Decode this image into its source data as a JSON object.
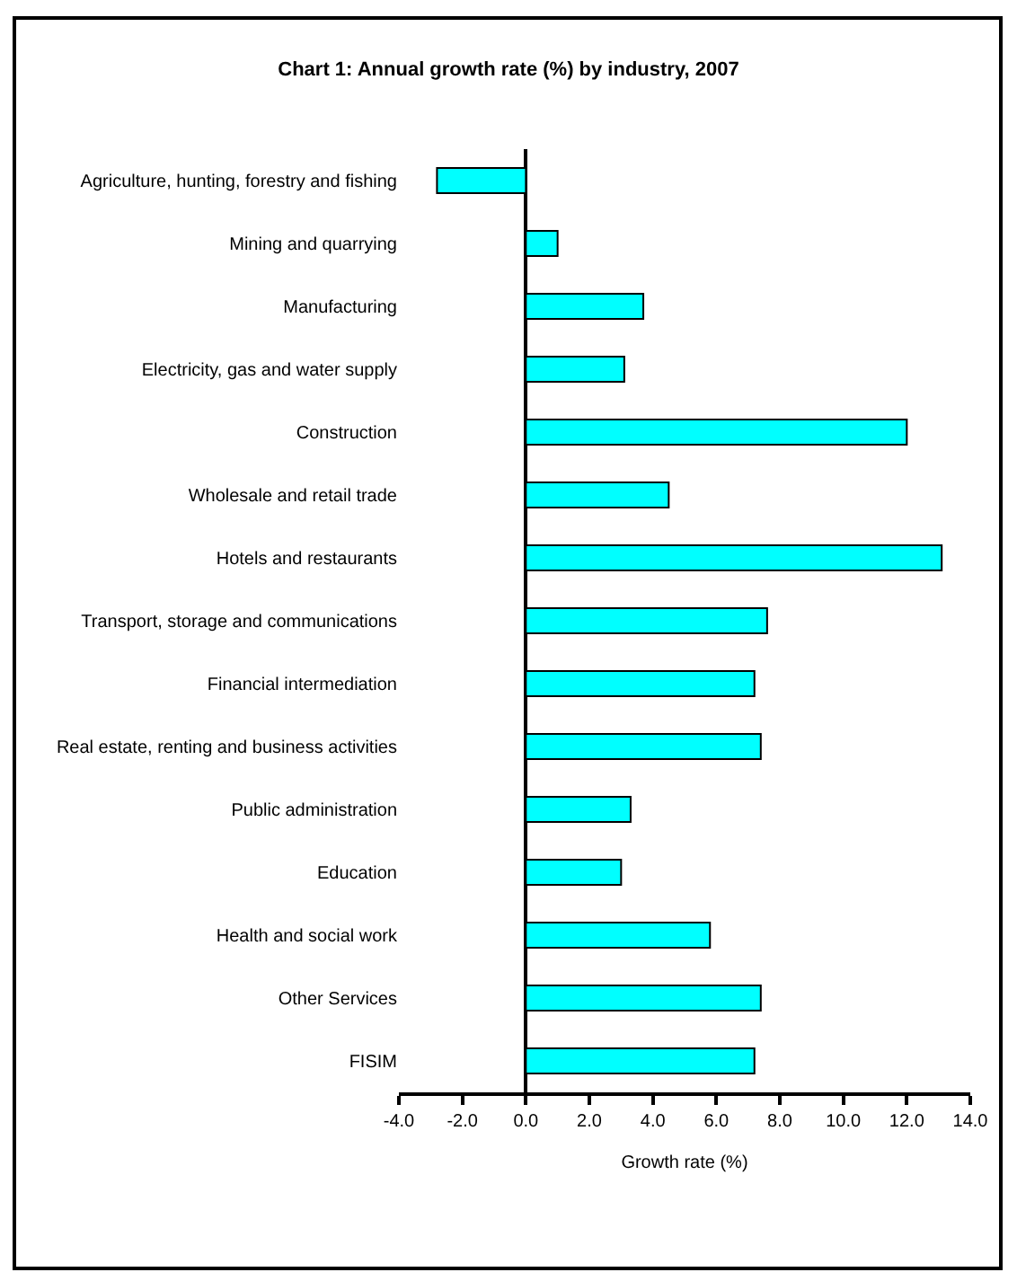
{
  "chart_data": {
    "type": "bar",
    "orientation": "horizontal",
    "title": "Chart 1: Annual growth rate (%) by industry, 2007",
    "xlabel": "Growth rate (%)",
    "categories": [
      "Agriculture, hunting, forestry and fishing",
      "Mining and quarrying",
      "Manufacturing",
      "Electricity, gas and water supply",
      "Construction",
      "Wholesale and retail trade",
      "Hotels and restaurants",
      "Transport, storage and communications",
      "Financial intermediation",
      "Real estate, renting and business activities",
      "Public administration",
      "Education",
      "Health and social work",
      "Other Services",
      "FISIM"
    ],
    "values": [
      -2.8,
      1.0,
      3.7,
      3.1,
      12.0,
      4.5,
      13.1,
      7.6,
      7.2,
      7.4,
      3.3,
      3.0,
      5.8,
      7.4,
      7.2
    ],
    "color": "#00ffff",
    "xlim": [
      -4,
      14
    ],
    "xticks": [
      {
        "value": -4,
        "label": "-4.0"
      },
      {
        "value": -2,
        "label": "-2.0"
      },
      {
        "value": 0,
        "label": "0.0"
      },
      {
        "value": 2,
        "label": "2.0"
      },
      {
        "value": 4,
        "label": "4.0"
      },
      {
        "value": 6,
        "label": "6.0"
      },
      {
        "value": 8,
        "label": "8.0"
      },
      {
        "value": 10,
        "label": "10.0"
      },
      {
        "value": 12,
        "label": "12.0"
      },
      {
        "value": 14,
        "label": "14.0"
      }
    ]
  }
}
